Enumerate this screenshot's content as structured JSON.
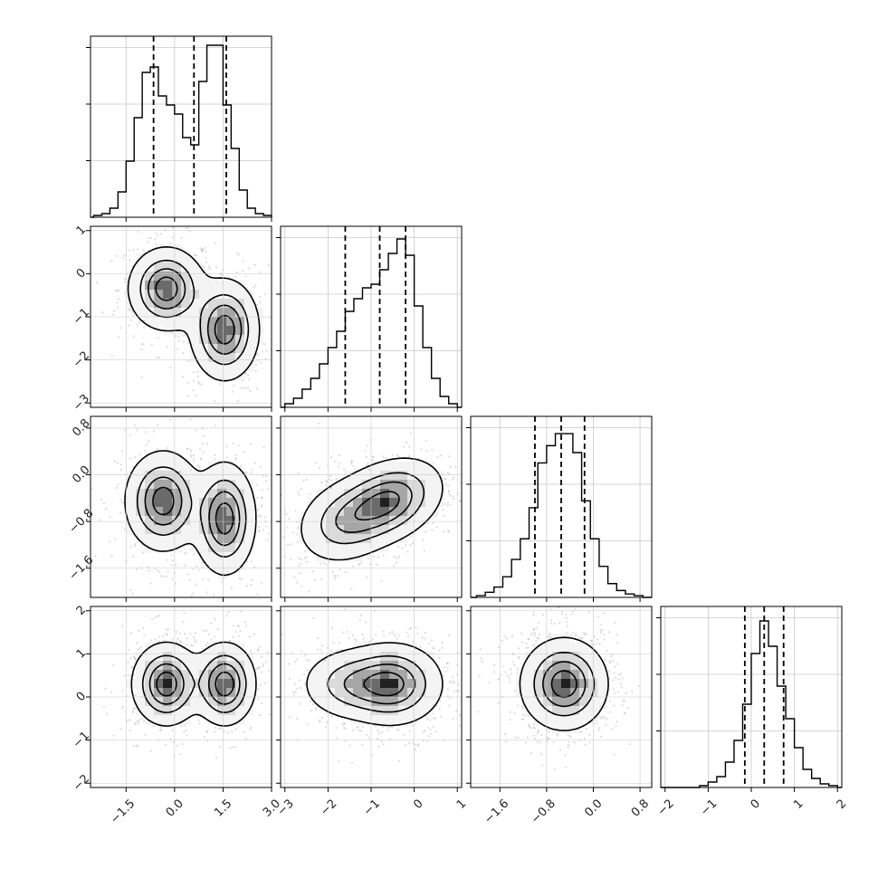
{
  "chart_data": {
    "type": "corner",
    "grid": true,
    "quantile_line_style": "dashed",
    "params": [
      {
        "range": [
          -2.6,
          3.0
        ],
        "ticks": [
          -1.5,
          0.0,
          1.5,
          3.0
        ],
        "tick_labels": [
          "−1.5",
          "0.0",
          "1.5",
          "3.0"
        ],
        "quantiles": [
          -0.65,
          0.6,
          1.6
        ],
        "hist_bins": [
          -2.5,
          -2.25,
          -2.0,
          -1.75,
          -1.5,
          -1.25,
          -1.0,
          -0.75,
          -0.5,
          -0.25,
          0.0,
          0.25,
          0.5,
          0.75,
          1.0,
          1.25,
          1.5,
          1.75,
          2.0,
          2.25,
          2.5,
          2.75
        ],
        "hist_counts": [
          0.01,
          0.02,
          0.05,
          0.14,
          0.31,
          0.55,
          0.8,
          0.83,
          0.67,
          0.62,
          0.57,
          0.44,
          0.4,
          0.75,
          0.95,
          0.95,
          0.62,
          0.38,
          0.15,
          0.05,
          0.02,
          0.01
        ],
        "hist_ylim": [
          0,
          1.0
        ]
      },
      {
        "range": [
          -3.1,
          1.1
        ],
        "ticks": [
          -3,
          -2,
          -1,
          0,
          1
        ],
        "tick_labels": [
          "−3",
          "−2",
          "−1",
          "0",
          "1"
        ],
        "quantiles": [
          -1.6,
          -0.8,
          -0.2
        ],
        "hist_bins": [
          -3.0,
          -2.8,
          -2.6,
          -2.4,
          -2.2,
          -2.0,
          -1.8,
          -1.6,
          -1.4,
          -1.2,
          -1.0,
          -0.8,
          -0.6,
          -0.4,
          -0.2,
          0.0,
          0.2,
          0.4,
          0.6,
          0.8
        ],
        "hist_counts": [
          0.02,
          0.05,
          0.1,
          0.16,
          0.24,
          0.33,
          0.42,
          0.53,
          0.6,
          0.66,
          0.68,
          0.76,
          0.85,
          0.93,
          0.84,
          0.56,
          0.33,
          0.16,
          0.06,
          0.02
        ],
        "hist_ylim": [
          0,
          1.0
        ]
      },
      {
        "range": [
          -2.1,
          1.0
        ],
        "ticks": [
          -1.6,
          -0.8,
          0.0,
          0.8
        ],
        "tick_labels": [
          "−1.6",
          "−0.8",
          "0.0",
          "0.8"
        ],
        "quantiles": [
          -1.0,
          -0.55,
          -0.15
        ],
        "hist_bins": [
          -2.0,
          -1.85,
          -1.7,
          -1.55,
          -1.4,
          -1.25,
          -1.1,
          -0.95,
          -0.8,
          -0.65,
          -0.5,
          -0.35,
          -0.2,
          -0.05,
          0.1,
          0.25,
          0.4,
          0.55,
          0.7
        ],
        "hist_counts": [
          0.01,
          0.03,
          0.06,
          0.12,
          0.22,
          0.34,
          0.52,
          0.78,
          0.88,
          0.95,
          0.95,
          0.84,
          0.56,
          0.34,
          0.18,
          0.08,
          0.04,
          0.02,
          0.01
        ],
        "hist_ylim": [
          0,
          1.05
        ]
      },
      {
        "range": [
          -2.1,
          2.1
        ],
        "ticks": [
          -2,
          -1,
          0,
          1,
          2
        ],
        "tick_labels": [
          "−2",
          "−1",
          "0",
          "1",
          "2"
        ],
        "quantiles": [
          -0.15,
          0.3,
          0.75
        ],
        "hist_bins": [
          -2.0,
          -1.8,
          -1.6,
          -1.4,
          -1.2,
          -1.0,
          -0.8,
          -0.6,
          -0.4,
          -0.2,
          0.0,
          0.2,
          0.4,
          0.6,
          0.8,
          1.0,
          1.2,
          1.4,
          1.6,
          1.8
        ],
        "hist_counts": [
          0.0,
          0.0,
          0.0,
          0.0,
          0.01,
          0.03,
          0.06,
          0.14,
          0.26,
          0.46,
          0.74,
          0.92,
          0.78,
          0.56,
          0.38,
          0.22,
          0.1,
          0.05,
          0.02,
          0.01
        ],
        "hist_ylim": [
          0,
          1.0
        ]
      }
    ],
    "pairs": [
      {
        "row": 1,
        "col": 0,
        "blobs": [
          {
            "cx": -0.25,
            "cy": -0.35,
            "sx": 0.55,
            "sy": 0.45,
            "rho": 0.0,
            "w": 1.0
          },
          {
            "cx": 1.55,
            "cy": -1.3,
            "sx": 0.5,
            "sy": 0.55,
            "rho": 0.0,
            "w": 1.0
          }
        ]
      },
      {
        "row": 2,
        "col": 0,
        "blobs": [
          {
            "cx": -0.35,
            "cy": -0.45,
            "sx": 0.55,
            "sy": 0.4,
            "rho": 0.0,
            "w": 1.0
          },
          {
            "cx": 1.55,
            "cy": -0.75,
            "sx": 0.45,
            "sy": 0.45,
            "rho": 0.0,
            "w": 1.0
          }
        ]
      },
      {
        "row": 2,
        "col": 1,
        "blobs": [
          {
            "cx": -0.6,
            "cy": -0.45,
            "sx": 0.6,
            "sy": 0.35,
            "rho": 0.3,
            "w": 1.0
          },
          {
            "cx": -1.6,
            "cy": -0.8,
            "sx": 0.55,
            "sy": 0.35,
            "rho": 0.2,
            "w": 0.6
          }
        ]
      },
      {
        "row": 3,
        "col": 0,
        "blobs": [
          {
            "cx": -0.25,
            "cy": 0.3,
            "sx": 0.5,
            "sy": 0.45,
            "rho": 0.0,
            "w": 1.0
          },
          {
            "cx": 1.55,
            "cy": 0.3,
            "sx": 0.45,
            "sy": 0.45,
            "rho": 0.0,
            "w": 1.0
          }
        ]
      },
      {
        "row": 3,
        "col": 1,
        "blobs": [
          {
            "cx": -0.5,
            "cy": 0.3,
            "sx": 0.55,
            "sy": 0.45,
            "rho": 0.0,
            "w": 1.0
          },
          {
            "cx": -1.5,
            "cy": 0.3,
            "sx": 0.55,
            "sy": 0.4,
            "rho": 0.0,
            "w": 0.55
          }
        ]
      },
      {
        "row": 3,
        "col": 2,
        "blobs": [
          {
            "cx": -0.5,
            "cy": 0.3,
            "sx": 0.35,
            "sy": 0.5,
            "rho": 0.0,
            "w": 1.0
          }
        ]
      }
    ]
  }
}
